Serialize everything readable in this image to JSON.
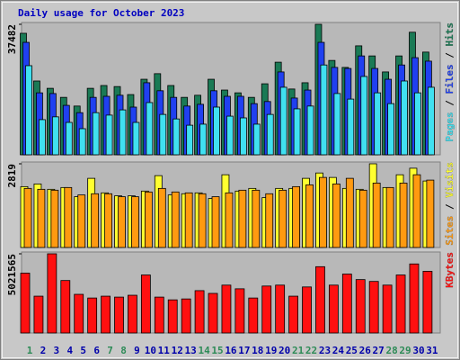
{
  "chart_data": [
    {
      "type": "bar",
      "title": "Daily usage for October 2023",
      "ylim": [
        0,
        37482
      ],
      "yticks": [
        37482
      ],
      "legend_separator": " / ",
      "series": [
        {
          "name": "Pages",
          "color": "#40e0f0",
          "values": [
            25600,
            10100,
            10900,
            9300,
            7500,
            12100,
            11400,
            12900,
            9300,
            15000,
            11600,
            10300,
            8500,
            8800,
            13700,
            11100,
            10600,
            8800,
            11600,
            19400,
            13200,
            14000,
            25800,
            17600,
            16000,
            22500,
            17800,
            14700,
            21200,
            17800,
            19400
          ]
        },
        {
          "name": "Files",
          "color": "#2040f0",
          "values": [
            32300,
            17800,
            17600,
            14200,
            12100,
            16500,
            16800,
            17100,
            13700,
            20700,
            18400,
            16500,
            14000,
            14500,
            18400,
            16800,
            16800,
            14700,
            15300,
            23800,
            16300,
            18600,
            32300,
            25100,
            24800,
            28400,
            24800,
            21700,
            25800,
            27900,
            26900
          ]
        },
        {
          "name": "Hits",
          "color": "#1a7a55",
          "values": [
            34900,
            21200,
            19100,
            16500,
            14000,
            19100,
            19900,
            19600,
            17300,
            21700,
            23300,
            19900,
            16500,
            17100,
            21700,
            18600,
            17800,
            16500,
            20400,
            26600,
            18900,
            20700,
            37482,
            27100,
            25100,
            31300,
            28400,
            23800,
            28400,
            35200,
            29500
          ]
        }
      ]
    },
    {
      "type": "bar",
      "ylim": [
        0,
        2819
      ],
      "yticks": [
        2819
      ],
      "legend_separator": " / ",
      "series": [
        {
          "name": "Sites",
          "color": "#ff9a10",
          "values": [
            1990,
            1960,
            1930,
            2020,
            1770,
            1810,
            1810,
            1710,
            1710,
            1870,
            1990,
            1870,
            1840,
            1810,
            1710,
            1840,
            1930,
            1930,
            1810,
            1930,
            2050,
            2110,
            2360,
            2140,
            2330,
            1930,
            2170,
            2020,
            2170,
            2450,
            2270
          ]
        },
        {
          "name": "Visits",
          "color": "#ffff30",
          "values": [
            2050,
            2140,
            1960,
            2020,
            1710,
            2330,
            1840,
            1740,
            1740,
            1900,
            2420,
            1770,
            1810,
            1840,
            1650,
            2450,
            1900,
            1990,
            1680,
            1990,
            1990,
            2330,
            2510,
            2360,
            1990,
            1960,
            2819,
            2020,
            2450,
            2670,
            2240
          ]
        }
      ]
    },
    {
      "type": "bar",
      "ylim": [
        0,
        5021565
      ],
      "yticks": [
        5021565
      ],
      "categories": [
        "1",
        "2",
        "3",
        "4",
        "5",
        "6",
        "7",
        "8",
        "9",
        "10",
        "11",
        "12",
        "13",
        "14",
        "15",
        "16",
        "17",
        "18",
        "19",
        "20",
        "21",
        "22",
        "23",
        "24",
        "25",
        "26",
        "27",
        "28",
        "29",
        "30",
        "31"
      ],
      "category_colors": [
        "#2e8b57",
        "#0000aa",
        "#0000aa",
        "#0000aa",
        "#0000aa",
        "#0000aa",
        "#2e8b57",
        "#2e8b57",
        "#0000aa",
        "#0000aa",
        "#0000aa",
        "#0000aa",
        "#0000aa",
        "#2e8b57",
        "#2e8b57",
        "#0000aa",
        "#0000aa",
        "#0000aa",
        "#0000aa",
        "#0000aa",
        "#2e8b57",
        "#2e8b57",
        "#0000aa",
        "#0000aa",
        "#0000aa",
        "#0000aa",
        "#0000aa",
        "#2e8b57",
        "#2e8b57",
        "#0000aa",
        "#0000aa"
      ],
      "series": [
        {
          "name": "KBytes",
          "color": "#ff1010",
          "values": [
            3795000,
            2336000,
            5021565,
            3328000,
            2452000,
            2219000,
            2336000,
            2277000,
            2394000,
            3679000,
            2277000,
            2102000,
            2160000,
            2686000,
            2511000,
            3036000,
            2803000,
            2219000,
            2978000,
            3036000,
            2336000,
            2920000,
            4204000,
            3036000,
            3737000,
            3387000,
            3270000,
            3036000,
            3679000,
            4379000,
            3912000
          ]
        }
      ]
    }
  ]
}
